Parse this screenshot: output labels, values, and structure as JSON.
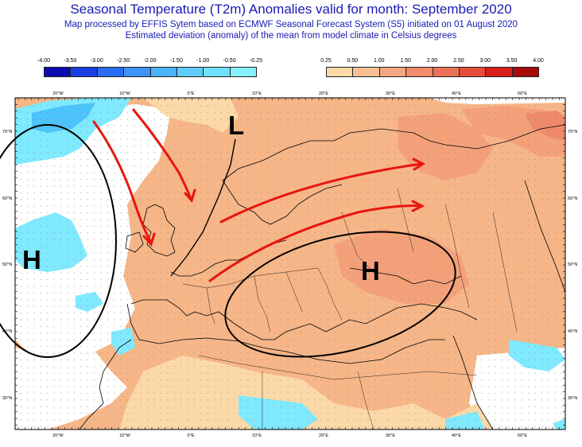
{
  "header": {
    "title": "Seasonal Temperature (T2m) Anomalies valid for month: September 2020",
    "subtitle1": "Map processed by EFFIS Sytem based on ECMWF Seasonal Forecast System (S5) initiated on 01 August 2020",
    "subtitle2": "Estimated deviation (anomaly) of the mean from model climate in Celsius degrees"
  },
  "legend_cold": {
    "labels": [
      "-4.00",
      "-3.50",
      "-3.00",
      "-2.50",
      "-2.00",
      "-1.50",
      "-1.00",
      "-0.50",
      "-0.25"
    ],
    "colors": [
      "#0b0bb0",
      "#1c3fe0",
      "#2a6cf2",
      "#3d94f7",
      "#4cb3fa",
      "#5fcdfc",
      "#6fe0fd",
      "#85f0fe"
    ]
  },
  "legend_warm": {
    "labels": [
      "0.25",
      "0.50",
      "1.00",
      "1.50",
      "2.00",
      "2.50",
      "3.00",
      "3.50",
      "4.00"
    ],
    "colors": [
      "#fcd9a8",
      "#f9c193",
      "#f5a680",
      "#f08b6c",
      "#ec7158",
      "#e44d3c",
      "#d6201c",
      "#a80a0a"
    ]
  },
  "map": {
    "lon_labels": [
      "20°W",
      "10°W",
      "0°E",
      "10°E",
      "20°E",
      "30°E",
      "40°E",
      "50°E"
    ],
    "lat_labels": [
      "70°N",
      "60°N",
      "50°N",
      "40°N",
      "30°N"
    ],
    "pressure_labels": [
      "L",
      "H",
      "H"
    ]
  }
}
